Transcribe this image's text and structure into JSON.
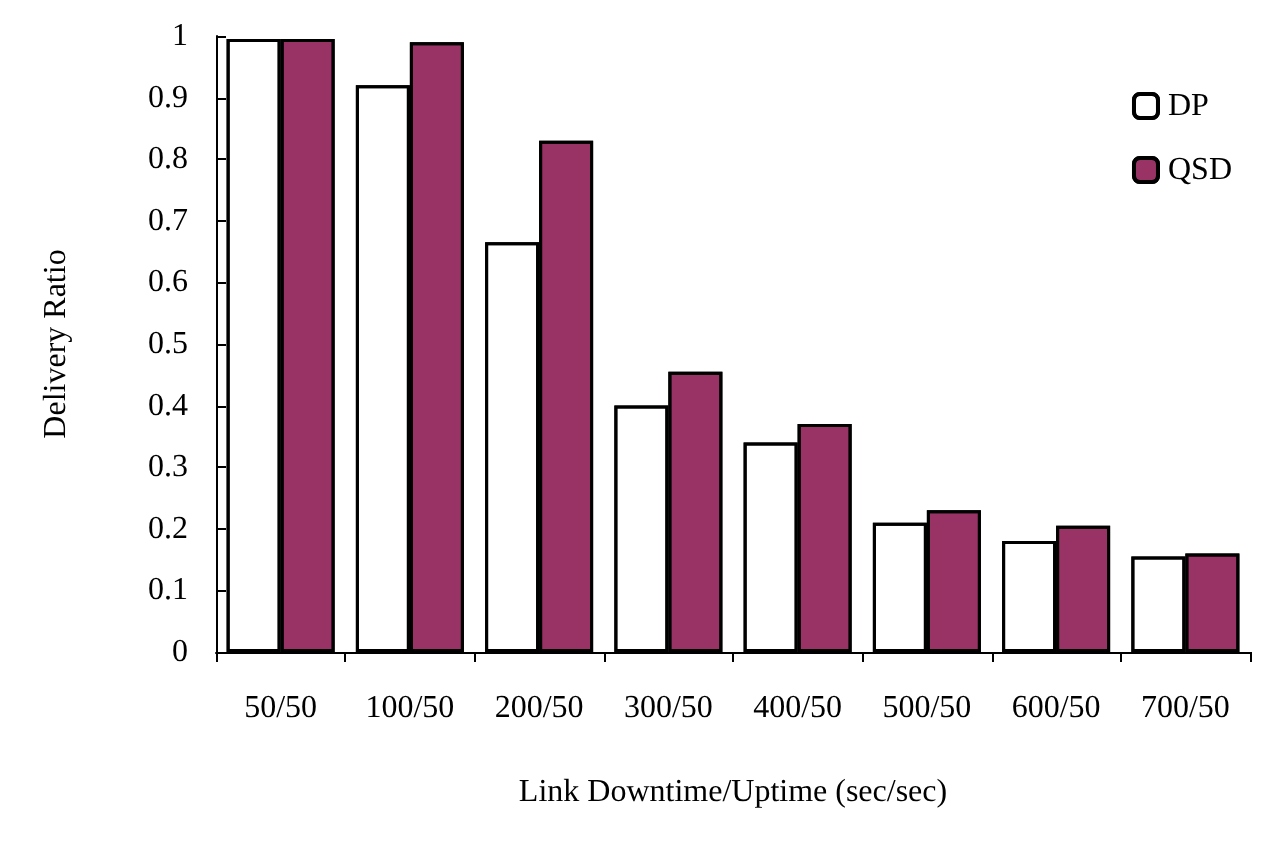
{
  "chart_data": {
    "type": "bar",
    "xlabel": "Link Downtime/Uptime (sec/sec)",
    "ylabel": "Delivery Ratio",
    "categories": [
      "50/50",
      "100/50",
      "200/50",
      "300/50",
      "400/50",
      "500/50",
      "600/50",
      "700/50"
    ],
    "series": [
      {
        "name": "DP",
        "color": "#ffffff",
        "values": [
          0.995,
          0.92,
          0.665,
          0.4,
          0.34,
          0.21,
          0.18,
          0.155
        ]
      },
      {
        "name": "QSD",
        "color": "#993366",
        "values": [
          0.995,
          0.99,
          0.83,
          0.455,
          0.37,
          0.23,
          0.205,
          0.16
        ]
      }
    ],
    "ylim": [
      0,
      1
    ],
    "yticks": [
      0,
      0.1,
      0.2,
      0.3,
      0.4,
      0.5,
      0.6,
      0.7,
      0.8,
      0.9,
      1
    ],
    "grid": false,
    "legend": "top right"
  }
}
